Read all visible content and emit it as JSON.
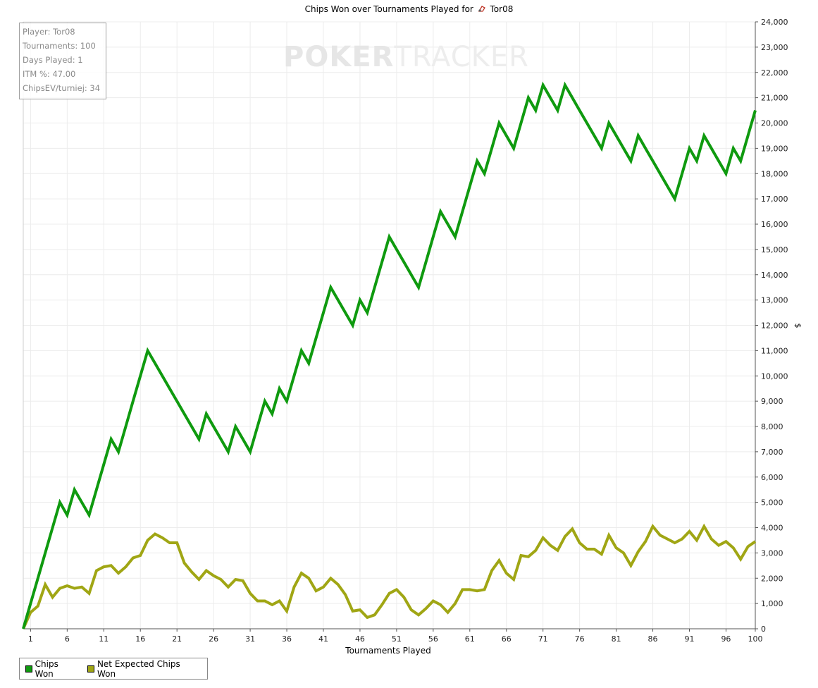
{
  "title_prefix": "Chips Won over Tournaments Played for",
  "player_name": "Tor08",
  "watermark": {
    "part1": "POKER",
    "part2": "TRACKER"
  },
  "infobox": [
    "Player: Tor08",
    "Tournaments: 100",
    "Days Played: 1",
    "ITM %: 47.00",
    "ChipsEV/turniej: 34"
  ],
  "legend": [
    {
      "label": "Chips Won",
      "color": "#0f9a0f"
    },
    {
      "label": "Net Expected Chips Won",
      "color": "#a0a614"
    }
  ],
  "chart_data": {
    "type": "line",
    "title": "Chips Won over Tournaments Played for Tor08",
    "xlabel": "Tournaments Played",
    "ylabel": "$",
    "xlim": [
      0,
      100
    ],
    "ylim": [
      0,
      24000
    ],
    "x_ticks": [
      1,
      6,
      11,
      16,
      21,
      26,
      31,
      36,
      41,
      46,
      51,
      56,
      61,
      66,
      71,
      76,
      81,
      86,
      91,
      96,
      100
    ],
    "y_ticks": [
      0,
      1000,
      2000,
      3000,
      4000,
      5000,
      6000,
      7000,
      8000,
      9000,
      10000,
      11000,
      12000,
      13000,
      14000,
      15000,
      16000,
      17000,
      18000,
      19000,
      20000,
      21000,
      22000,
      23000,
      24000
    ],
    "y_tick_labels": [
      "0",
      "1,000",
      "2,000",
      "3,000",
      "4,000",
      "5,000",
      "6,000",
      "7,000",
      "8,000",
      "9,000",
      "10,000",
      "11,000",
      "12,000",
      "13,000",
      "14,000",
      "15,000",
      "16,000",
      "17,000",
      "18,000",
      "19,000",
      "20,000",
      "21,000",
      "22,000",
      "23,000",
      "24,000"
    ],
    "grid": true,
    "legend_position": "bottom-left",
    "series": [
      {
        "name": "Chips Won",
        "color": "#0f9a0f",
        "values": [
          0,
          1000,
          2000,
          3000,
          4000,
          5000,
          4500,
          5500,
          5000,
          4500,
          5500,
          6500,
          7500,
          7000,
          8000,
          9000,
          10000,
          11000,
          10500,
          10000,
          9500,
          9000,
          8500,
          8000,
          7500,
          8500,
          8000,
          7500,
          7000,
          8000,
          7500,
          7000,
          8000,
          9000,
          8500,
          9500,
          9000,
          10000,
          11000,
          10500,
          11500,
          12500,
          13500,
          13000,
          12500,
          12000,
          13000,
          12500,
          13500,
          14500,
          15500,
          15000,
          14500,
          14000,
          13500,
          14500,
          15500,
          16500,
          16000,
          15500,
          16500,
          17500,
          18500,
          18000,
          19000,
          20000,
          19500,
          19000,
          20000,
          21000,
          20500,
          21500,
          21000,
          20500,
          21500,
          21000,
          20500,
          20000,
          19500,
          19000,
          20000,
          19500,
          19000,
          18500,
          19500,
          19000,
          18500,
          18000,
          17500,
          17000,
          18000,
          19000,
          18500,
          19500,
          19000,
          18500,
          18000,
          19000,
          18500,
          19500,
          20500
        ]
      },
      {
        "name": "Net Expected Chips Won",
        "color": "#a0a614",
        "values": [
          0,
          650,
          900,
          1750,
          1250,
          1600,
          1700,
          1600,
          1650,
          1400,
          2300,
          2450,
          2500,
          2200,
          2450,
          2800,
          2900,
          3500,
          3750,
          3600,
          3400,
          3400,
          2600,
          2250,
          1950,
          2300,
          2100,
          1950,
          1650,
          1950,
          1900,
          1400,
          1100,
          1100,
          950,
          1100,
          700,
          1650,
          2200,
          2000,
          1500,
          1650,
          2000,
          1750,
          1350,
          700,
          750,
          450,
          550,
          950,
          1400,
          1550,
          1250,
          750,
          550,
          800,
          1100,
          950,
          650,
          1000,
          1550,
          1550,
          1500,
          1550,
          2300,
          2700,
          2200,
          1950,
          2900,
          2850,
          3100,
          3600,
          3300,
          3100,
          3650,
          3950,
          3400,
          3150,
          3150,
          2950,
          3700,
          3200,
          3000,
          2500,
          3050,
          3450,
          4050,
          3700,
          3550,
          3400,
          3550,
          3850,
          3500,
          4050,
          3550,
          3300,
          3450,
          3200,
          2750,
          3250,
          3450
        ]
      }
    ]
  }
}
